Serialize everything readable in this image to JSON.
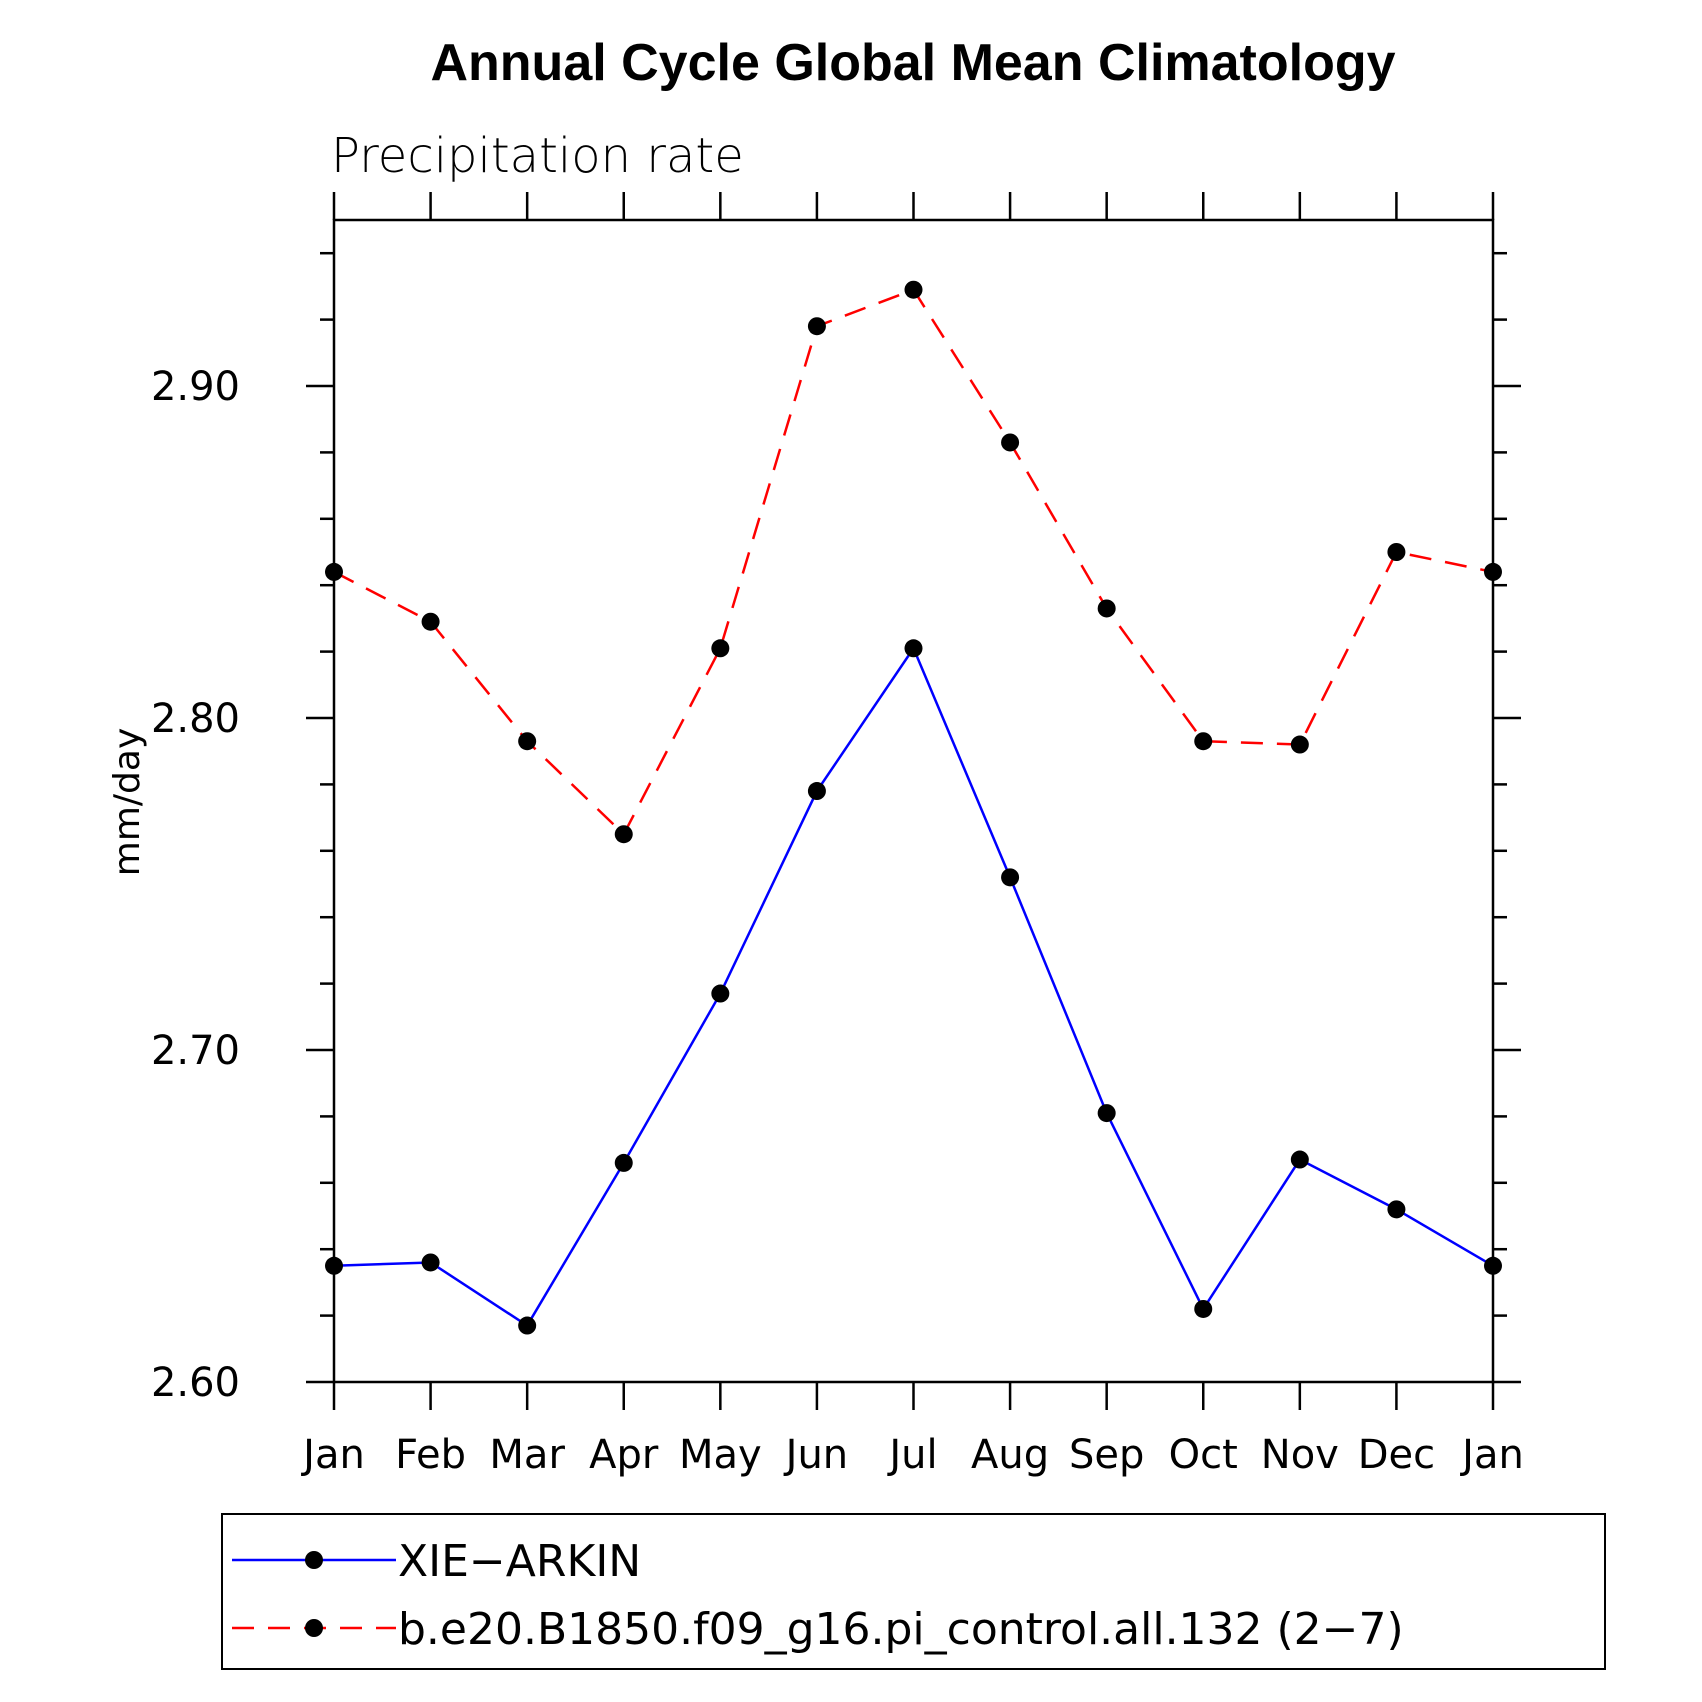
{
  "chart_data": {
    "type": "line",
    "title": "Annual Cycle Global Mean Climatology",
    "subtitle": "Precipitation rate",
    "ylabel": "mm/day",
    "xlabel": "",
    "categories": [
      "Jan",
      "Feb",
      "Mar",
      "Apr",
      "May",
      "Jun",
      "Jul",
      "Aug",
      "Sep",
      "Oct",
      "Nov",
      "Dec",
      "Jan"
    ],
    "ylim": [
      2.6,
      2.95
    ],
    "yticks": [
      2.6,
      2.7,
      2.8,
      2.9
    ],
    "ytick_labels": [
      "2.60",
      "2.70",
      "2.80",
      "2.90"
    ],
    "grid": false,
    "legend_position": "bottom",
    "series": [
      {
        "name": "XIE−ARKIN",
        "color": "#0000ff",
        "dash": "solid",
        "marker": "circle",
        "values": [
          2.635,
          2.636,
          2.617,
          2.666,
          2.717,
          2.778,
          2.821,
          2.752,
          2.681,
          2.622,
          2.667,
          2.652,
          2.635
        ]
      },
      {
        "name": "b.e20.B1850.f09_g16.pi_control.all.132 (2−7)",
        "color": "#ff0000",
        "dash": "dashed",
        "marker": "circle",
        "values": [
          2.844,
          2.829,
          2.793,
          2.765,
          2.821,
          2.918,
          2.929,
          2.883,
          2.833,
          2.793,
          2.792,
          2.85,
          2.844
        ]
      }
    ]
  }
}
